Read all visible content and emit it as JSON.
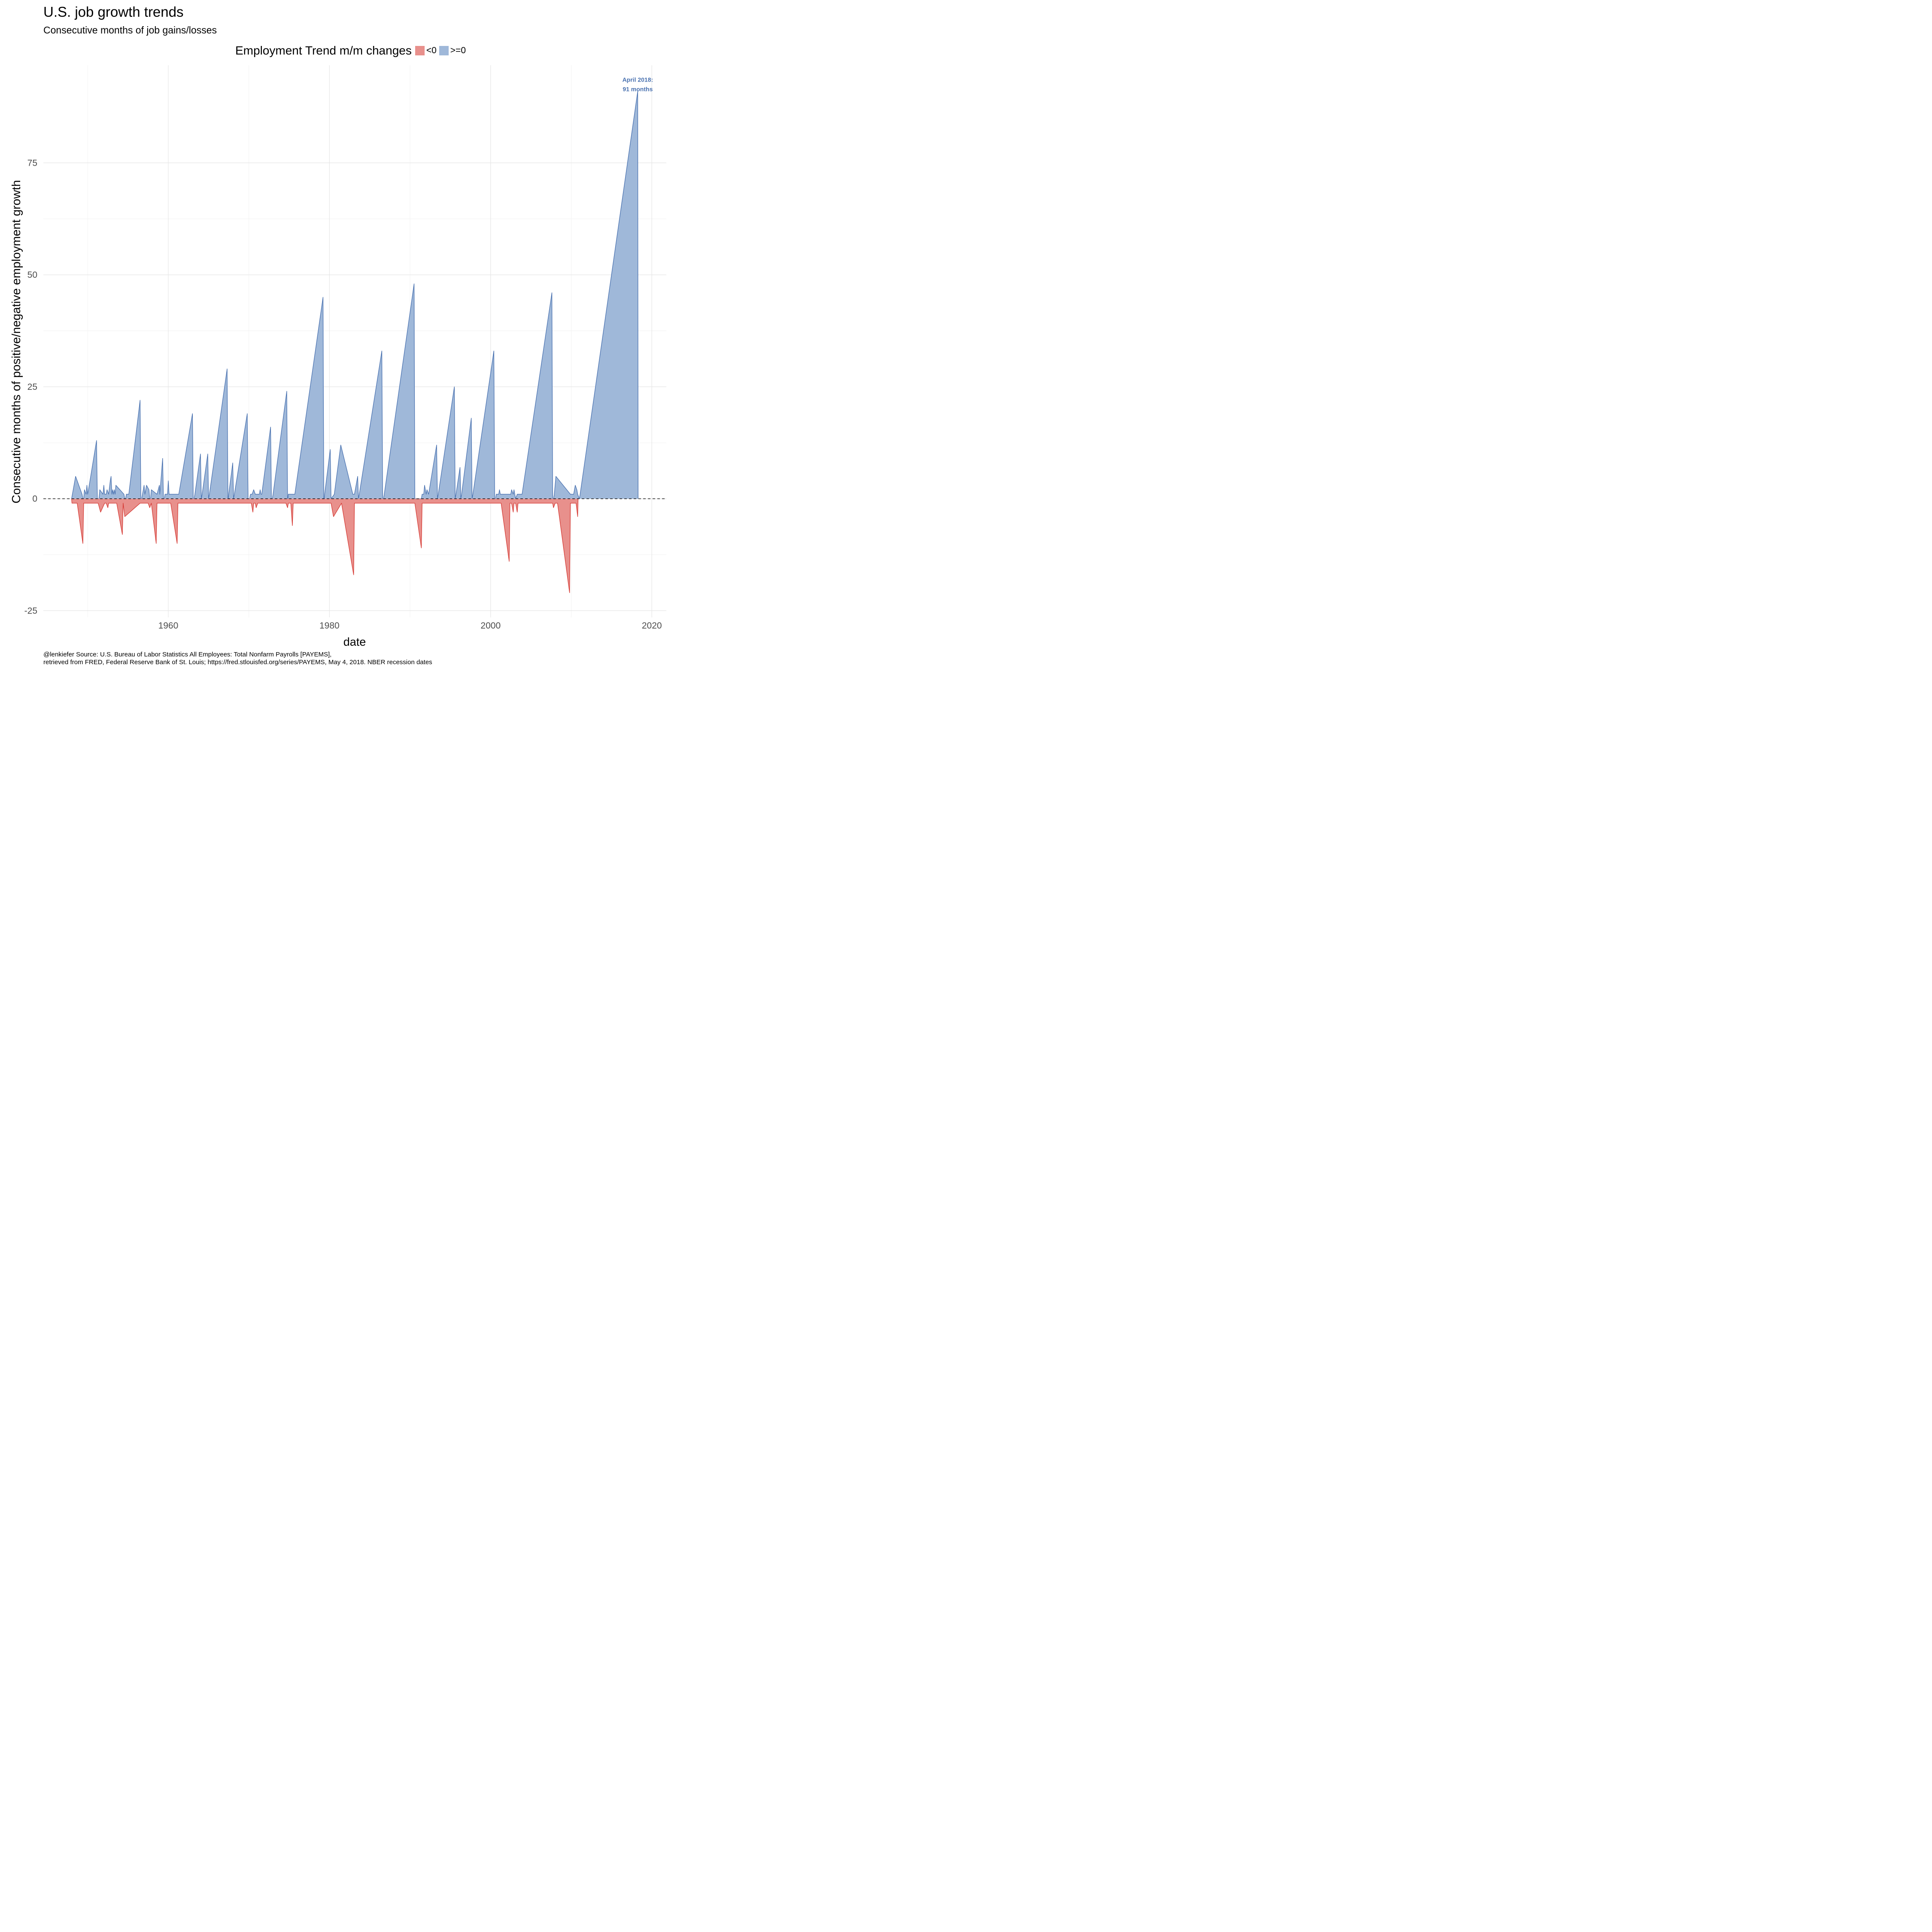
{
  "chart_data": {
    "type": "area",
    "title": "U.S. job growth trends",
    "subtitle": "Consecutive months of job gains/losses",
    "xlabel": "date",
    "ylabel": "Consecutive months of positive/negative employment growth",
    "caption": [
      "@lenkiefer Source: U.S. Bureau of Labor Statistics All Employees: Total Nonfarm Payrolls [PAYEMS],",
      "retrieved from FRED, Federal Reserve Bank of St. Louis; https://fred.stlouisfed.org/series/PAYEMS, May 4, 2018. NBER recession dates"
    ],
    "legend": {
      "title": "Employment Trend m/m changes",
      "position": "top",
      "items": [
        {
          "label": "<0",
          "color": "#e8908c"
        },
        {
          "label": ">=0",
          "color": "#9fb8d9"
        }
      ]
    },
    "xlim": [
      1944.5,
      2021.8
    ],
    "ylim": [
      -26.5,
      96.8
    ],
    "x_ticks": [
      1960,
      1980,
      2000,
      2020
    ],
    "y_ticks": [
      -25,
      0,
      25,
      50,
      75
    ],
    "grid": true,
    "reference_line": {
      "y": 0,
      "style": "dashed"
    },
    "annotation": {
      "lines": [
        "April 2018:",
        "91 months"
      ],
      "x": 2018.25,
      "y": 91
    },
    "series": [
      {
        "name": ">=0",
        "color": "#4a72b0",
        "fill": "#9fb8d9",
        "points": [
          [
            1948.0,
            0
          ],
          [
            1948.1,
            1
          ],
          [
            1948.5,
            5
          ],
          [
            1949.3,
            1
          ],
          [
            1949.4,
            0
          ],
          [
            1949.5,
            0
          ],
          [
            1949.6,
            2
          ],
          [
            1949.8,
            1
          ],
          [
            1949.9,
            3
          ],
          [
            1950.0,
            1
          ],
          [
            1950.1,
            2
          ],
          [
            1951.1,
            13
          ],
          [
            1951.2,
            0
          ],
          [
            1951.4,
            0
          ],
          [
            1951.5,
            2
          ],
          [
            1951.9,
            1
          ],
          [
            1952.0,
            3
          ],
          [
            1952.1,
            1
          ],
          [
            1952.3,
            1
          ],
          [
            1952.4,
            2
          ],
          [
            1952.6,
            1
          ],
          [
            1952.8,
            4
          ],
          [
            1952.9,
            5
          ],
          [
            1953.0,
            1
          ],
          [
            1953.1,
            2
          ],
          [
            1953.2,
            1
          ],
          [
            1953.3,
            2
          ],
          [
            1953.4,
            1
          ],
          [
            1953.5,
            3
          ],
          [
            1954.0,
            2
          ],
          [
            1954.5,
            1
          ],
          [
            1954.6,
            0
          ],
          [
            1954.7,
            0
          ],
          [
            1954.8,
            1
          ],
          [
            1955.1,
            1
          ],
          [
            1956.5,
            22
          ],
          [
            1956.6,
            0
          ],
          [
            1956.7,
            0
          ],
          [
            1956.8,
            1
          ],
          [
            1957.0,
            3
          ],
          [
            1957.1,
            1
          ],
          [
            1957.3,
            3
          ],
          [
            1957.6,
            2
          ],
          [
            1957.7,
            0
          ],
          [
            1957.8,
            0
          ],
          [
            1957.9,
            2
          ],
          [
            1958.6,
            1
          ],
          [
            1958.9,
            3
          ],
          [
            1958.95,
            1
          ],
          [
            1959.3,
            9
          ],
          [
            1959.4,
            0
          ],
          [
            1959.5,
            0
          ],
          [
            1959.6,
            1
          ],
          [
            1959.9,
            1
          ],
          [
            1960.0,
            4
          ],
          [
            1960.1,
            1
          ],
          [
            1961.3,
            1
          ],
          [
            1963.0,
            19
          ],
          [
            1963.1,
            0
          ],
          [
            1963.2,
            0
          ],
          [
            1963.3,
            1
          ],
          [
            1964.0,
            10
          ],
          [
            1964.1,
            0
          ],
          [
            1964.2,
            1
          ],
          [
            1964.9,
            10
          ],
          [
            1965.0,
            0
          ],
          [
            1965.1,
            1
          ],
          [
            1967.3,
            29
          ],
          [
            1967.4,
            0
          ],
          [
            1967.45,
            0
          ],
          [
            1967.5,
            1
          ],
          [
            1968.0,
            8
          ],
          [
            1968.1,
            0
          ],
          [
            1968.2,
            1
          ],
          [
            1969.8,
            19
          ],
          [
            1969.9,
            0
          ],
          [
            1970.1,
            0
          ],
          [
            1970.2,
            1
          ],
          [
            1970.4,
            1
          ],
          [
            1970.6,
            2
          ],
          [
            1970.8,
            1
          ],
          [
            1971.3,
            1
          ],
          [
            1971.4,
            2
          ],
          [
            1971.5,
            1
          ],
          [
            1971.6,
            1
          ],
          [
            1972.7,
            16
          ],
          [
            1972.8,
            0
          ],
          [
            1972.9,
            0
          ],
          [
            1973.0,
            1
          ],
          [
            1974.7,
            24
          ],
          [
            1974.8,
            0
          ],
          [
            1974.85,
            0
          ],
          [
            1974.9,
            1
          ],
          [
            1975.7,
            1
          ],
          [
            1979.2,
            45
          ],
          [
            1979.3,
            0
          ],
          [
            1979.35,
            0
          ],
          [
            1979.4,
            1
          ],
          [
            1980.1,
            11
          ],
          [
            1980.2,
            0
          ],
          [
            1980.6,
            1
          ],
          [
            1981.4,
            12
          ],
          [
            1982.9,
            1
          ],
          [
            1983.1,
            1
          ],
          [
            1983.5,
            5
          ],
          [
            1983.6,
            0
          ],
          [
            1983.7,
            1
          ],
          [
            1986.5,
            33
          ],
          [
            1986.6,
            0
          ],
          [
            1986.7,
            0
          ],
          [
            1986.8,
            1
          ],
          [
            1990.5,
            48
          ],
          [
            1990.6,
            0
          ],
          [
            1991.4,
            0
          ],
          [
            1991.5,
            1
          ],
          [
            1991.7,
            1
          ],
          [
            1991.8,
            3
          ],
          [
            1992.0,
            1
          ],
          [
            1992.1,
            2
          ],
          [
            1992.3,
            1
          ],
          [
            1993.3,
            12
          ],
          [
            1993.4,
            0
          ],
          [
            1993.5,
            1
          ],
          [
            1995.5,
            25
          ],
          [
            1995.6,
            0
          ],
          [
            1995.7,
            1
          ],
          [
            1996.2,
            7
          ],
          [
            1996.3,
            0
          ],
          [
            1996.4,
            1
          ],
          [
            1997.6,
            18
          ],
          [
            1997.7,
            0
          ],
          [
            1997.8,
            1
          ],
          [
            2000.4,
            33
          ],
          [
            2000.5,
            0
          ],
          [
            2000.6,
            0
          ],
          [
            2000.7,
            1
          ],
          [
            2001.0,
            1
          ],
          [
            2001.1,
            2
          ],
          [
            2001.2,
            1
          ],
          [
            2002.5,
            1
          ],
          [
            2002.6,
            2
          ],
          [
            2002.8,
            1
          ],
          [
            2002.9,
            2
          ],
          [
            2003.0,
            1
          ],
          [
            2003.1,
            0
          ],
          [
            2003.3,
            1
          ],
          [
            2003.5,
            1
          ],
          [
            2003.9,
            1
          ],
          [
            2007.6,
            46
          ],
          [
            2007.7,
            0
          ],
          [
            2007.8,
            0
          ],
          [
            2007.9,
            1
          ],
          [
            2008.1,
            5
          ],
          [
            2009.9,
            1
          ],
          [
            2010.3,
            1
          ],
          [
            2010.5,
            3
          ],
          [
            2010.7,
            2
          ],
          [
            2010.8,
            1
          ],
          [
            2011.0,
            0
          ],
          [
            2011.1,
            1
          ],
          [
            2018.25,
            91
          ],
          [
            2018.3,
            0
          ]
        ]
      },
      {
        "name": "<0",
        "color": "#d63b35",
        "fill": "#e8908c",
        "points": [
          [
            1948.0,
            0
          ],
          [
            1948.05,
            -1
          ],
          [
            1948.7,
            -1
          ],
          [
            1949.4,
            -10
          ],
          [
            1949.5,
            -1
          ],
          [
            1951.3,
            -1
          ],
          [
            1951.6,
            -3
          ],
          [
            1952.1,
            -1
          ],
          [
            1952.3,
            -1
          ],
          [
            1952.5,
            -2
          ],
          [
            1952.6,
            -1
          ],
          [
            1953.4,
            -1
          ],
          [
            1953.6,
            -1
          ],
          [
            1954.2,
            -7
          ],
          [
            1954.3,
            -8
          ],
          [
            1954.4,
            -1
          ],
          [
            1954.6,
            -4
          ],
          [
            1956.5,
            -1
          ],
          [
            1957.5,
            -1
          ],
          [
            1957.7,
            -2
          ],
          [
            1957.9,
            -1
          ],
          [
            1958.5,
            -10
          ],
          [
            1958.6,
            -1
          ],
          [
            1959.5,
            -1
          ],
          [
            1960.3,
            -1
          ],
          [
            1961.1,
            -10
          ],
          [
            1961.2,
            -1
          ],
          [
            1970.3,
            -1
          ],
          [
            1970.5,
            -3
          ],
          [
            1970.6,
            -1
          ],
          [
            1970.8,
            -1
          ],
          [
            1970.9,
            -2
          ],
          [
            1971.1,
            -1
          ],
          [
            1974.6,
            -1
          ],
          [
            1974.8,
            -2
          ],
          [
            1974.9,
            -1
          ],
          [
            1975.2,
            -1
          ],
          [
            1975.4,
            -6
          ],
          [
            1975.5,
            -1
          ],
          [
            1980.2,
            -1
          ],
          [
            1980.5,
            -4
          ],
          [
            1981.5,
            -1
          ],
          [
            1983.0,
            -17
          ],
          [
            1983.1,
            -1
          ],
          [
            1990.6,
            -1
          ],
          [
            1991.4,
            -11
          ],
          [
            1991.5,
            -1
          ],
          [
            2001.3,
            -1
          ],
          [
            2002.3,
            -14
          ],
          [
            2002.4,
            -1
          ],
          [
            2002.6,
            -1
          ],
          [
            2002.8,
            -3
          ],
          [
            2002.9,
            -1
          ],
          [
            2003.1,
            -1
          ],
          [
            2003.3,
            -3
          ],
          [
            2003.4,
            -1
          ],
          [
            2007.7,
            -1
          ],
          [
            2007.8,
            -2
          ],
          [
            2008.0,
            -1
          ],
          [
            2008.3,
            -1
          ],
          [
            2009.8,
            -21
          ],
          [
            2009.9,
            -1
          ],
          [
            2010.5,
            -1
          ],
          [
            2010.6,
            -1
          ],
          [
            2010.8,
            -4
          ],
          [
            2010.85,
            0
          ]
        ]
      }
    ]
  }
}
